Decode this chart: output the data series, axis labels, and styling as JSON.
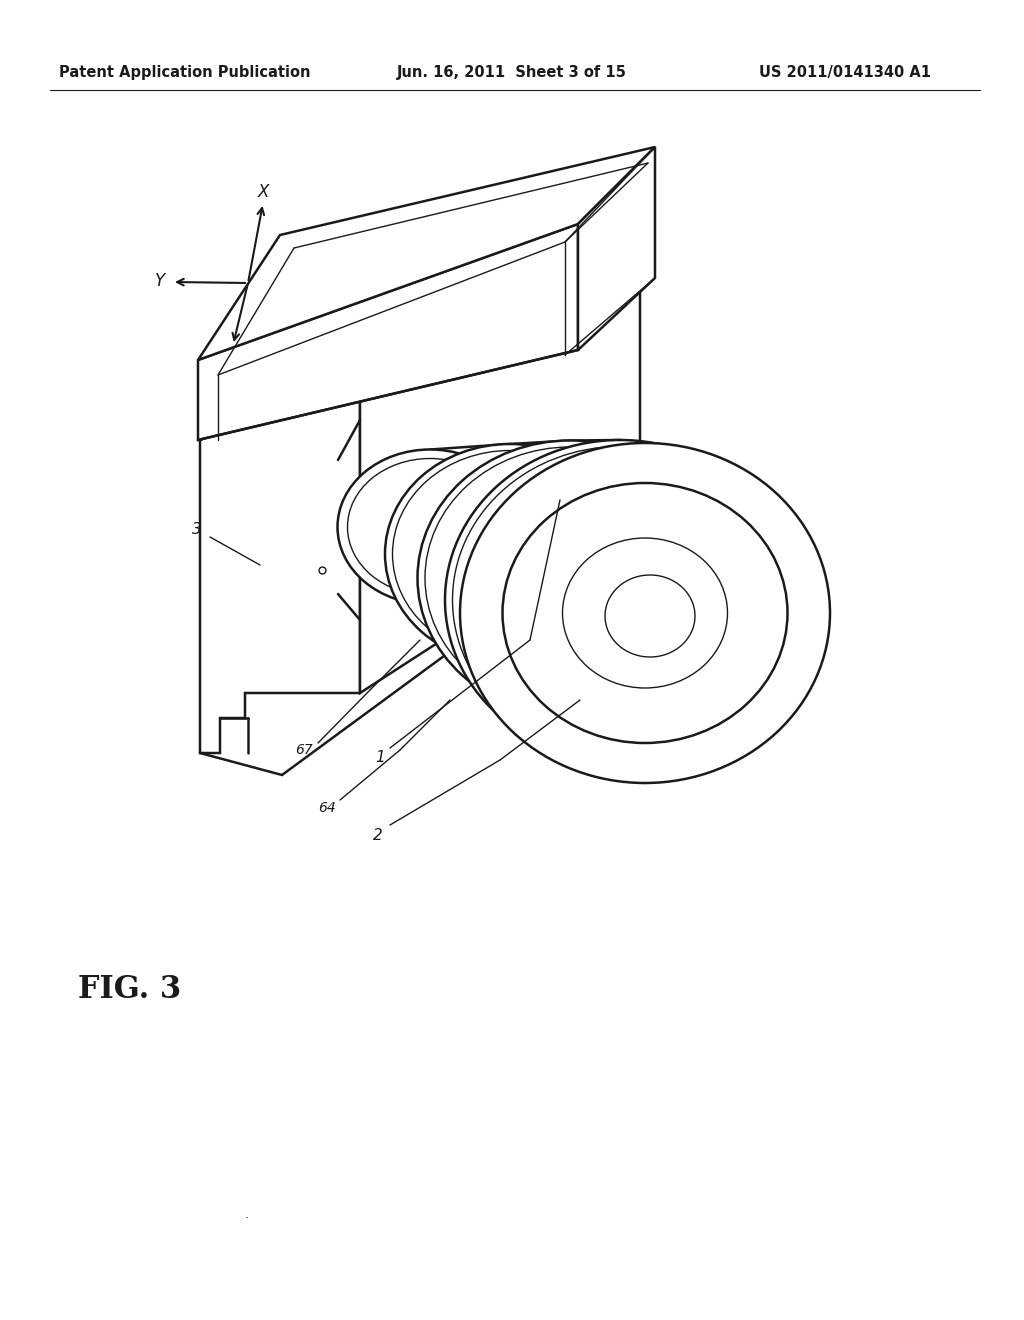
{
  "background_color": "#ffffff",
  "line_color": "#1a1a1a",
  "header_left": "Patent Application Publication",
  "header_center": "Jun. 16, 2011  Sheet 3 of 15",
  "header_right": "US 2011/0141340 A1",
  "figure_label": "FIG. 3",
  "lw_main": 1.8,
  "lw_thin": 1.0,
  "lw_detail": 0.8
}
